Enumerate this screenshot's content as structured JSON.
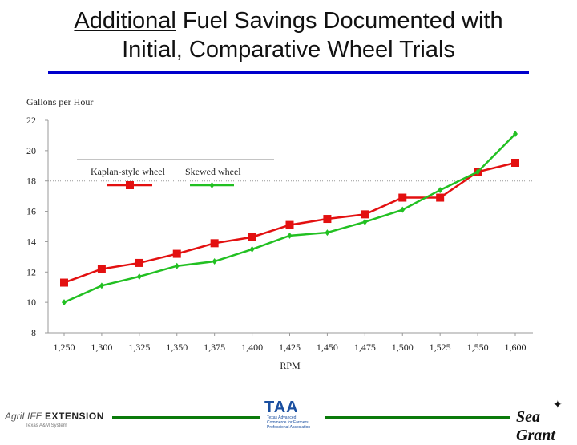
{
  "header": {
    "title_underlined": "Additional",
    "title_rest": " Fuel Savings Documented with",
    "title_line2": "Initial, Comparative Wheel Trials"
  },
  "chart_data": {
    "type": "line",
    "title": "",
    "xlabel": "RPM",
    "ylabel": "Gallons per Hour",
    "categories": [
      "1,250",
      "1,300",
      "1,325",
      "1,350",
      "1,375",
      "1,400",
      "1,425",
      "1,450",
      "1,475",
      "1,500",
      "1,525",
      "1,550",
      "1,600"
    ],
    "ylim": [
      8,
      22
    ],
    "yticks": [
      8,
      10,
      12,
      14,
      16,
      18,
      20,
      22
    ],
    "series": [
      {
        "name": "Kaplan-style wheel",
        "color": "#e31010",
        "marker": "square",
        "values": [
          11.3,
          12.2,
          12.6,
          13.2,
          13.9,
          14.3,
          15.1,
          15.5,
          15.8,
          16.9,
          16.9,
          18.6,
          19.2
        ]
      },
      {
        "name": "Skewed wheel",
        "color": "#22c022",
        "marker": "diamond",
        "values": [
          10.0,
          11.1,
          11.7,
          12.4,
          12.7,
          13.5,
          14.4,
          14.6,
          15.3,
          16.1,
          17.4,
          18.6,
          21.1
        ]
      }
    ],
    "legend_position": "top-left"
  },
  "footer": {
    "left_logo_prefix": "AgriLIFE",
    "left_logo_main": "EXTENSION",
    "left_logo_sub": "Texas A&M System",
    "center_logo": "TAA",
    "center_logo_sub": "Texas Advanced Commerce for Farmers Professional Association",
    "right_logo": "Sea Grant",
    "accent_color": "#0a7a0a"
  }
}
